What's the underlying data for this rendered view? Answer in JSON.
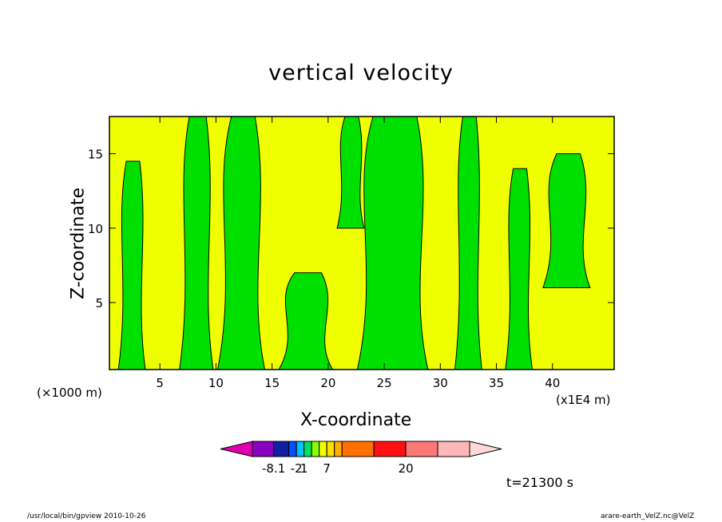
{
  "figure": {
    "title": "vertical velocity",
    "x_unit_note": "(×1000 m)",
    "x_scale_note": "(x1E4 m)",
    "time_label": "t=21300 s",
    "footer_left": "/usr/local/bin/gpview   2010-10-26",
    "footer_right": "arare-earth_VelZ.nc@VelZ"
  },
  "chart_data": {
    "type": "heatmap",
    "title": "vertical velocity",
    "xlabel": "X-coordinate",
    "ylabel": "Z-coordinate",
    "xlim": [
      0.5,
      45.5
    ],
    "ylim": [
      0.5,
      17.5
    ],
    "x_ticks": [
      5,
      10,
      15,
      20,
      25,
      30,
      35,
      40
    ],
    "y_ticks": [
      5,
      10,
      15
    ],
    "colorbar": {
      "colors": [
        "#e000b0",
        "#8800c0",
        "#1020a0",
        "#0050ff",
        "#00c0ff",
        "#00e060",
        "#88ff00",
        "#f0ff00",
        "#ffe000",
        "#ffb000",
        "#ff7000",
        "#ff1010",
        "#ff7878",
        "#ffb8b8",
        "#ffd8d8"
      ],
      "tick_labels": [
        "-8.1",
        "-2",
        "1",
        "7",
        "20"
      ],
      "tick_values": [
        -8.1,
        -2,
        1,
        7,
        20
      ]
    },
    "regions": [
      {
        "fill": "#00e000",
        "x_range": [
          1.5,
          3.5
        ],
        "z_range": [
          0.5,
          14.5
        ]
      },
      {
        "fill": "#00e000",
        "x_range": [
          7.0,
          9.5
        ],
        "z_range": [
          0.5,
          17.5
        ]
      },
      {
        "fill": "#00e000",
        "x_range": [
          10.5,
          14.0
        ],
        "z_range": [
          0.5,
          17.5
        ]
      },
      {
        "fill": "#00e000",
        "x_range": [
          16.0,
          20.0
        ],
        "z_range": [
          0.5,
          7.0
        ]
      },
      {
        "fill": "#00e000",
        "x_range": [
          21.0,
          23.0
        ],
        "z_range": [
          10.0,
          17.5
        ]
      },
      {
        "fill": "#00e000",
        "x_range": [
          23.0,
          28.5
        ],
        "z_range": [
          0.5,
          17.5
        ]
      },
      {
        "fill": "#00e000",
        "x_range": [
          31.5,
          33.5
        ],
        "z_range": [
          0.5,
          17.5
        ]
      },
      {
        "fill": "#00e000",
        "x_range": [
          36.0,
          38.0
        ],
        "z_range": [
          0.5,
          14.0
        ]
      },
      {
        "fill": "#00e000",
        "x_range": [
          39.5,
          43.0
        ],
        "z_range": [
          6.0,
          15.0
        ]
      }
    ]
  }
}
